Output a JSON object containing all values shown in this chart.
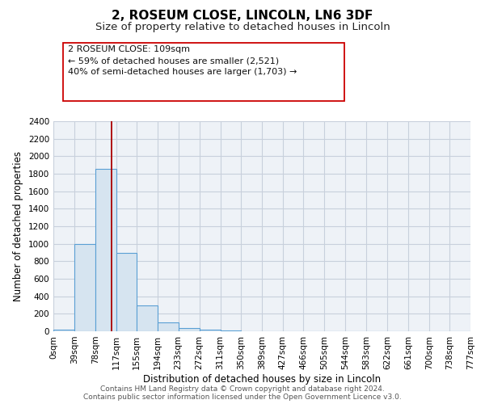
{
  "title": "2, ROSEUM CLOSE, LINCOLN, LN6 3DF",
  "subtitle": "Size of property relative to detached houses in Lincoln",
  "xlabel": "Distribution of detached houses by size in Lincoln",
  "ylabel": "Number of detached properties",
  "bin_edges": [
    0,
    39,
    78,
    117,
    155,
    194,
    233,
    272,
    311,
    350,
    389,
    427,
    466,
    505,
    544,
    583,
    622,
    661,
    700,
    738,
    777
  ],
  "bin_labels": [
    "0sqm",
    "39sqm",
    "78sqm",
    "117sqm",
    "155sqm",
    "194sqm",
    "233sqm",
    "272sqm",
    "311sqm",
    "350sqm",
    "389sqm",
    "427sqm",
    "466sqm",
    "505sqm",
    "544sqm",
    "583sqm",
    "622sqm",
    "661sqm",
    "700sqm",
    "738sqm",
    "777sqm"
  ],
  "bar_heights": [
    20,
    1000,
    1860,
    900,
    300,
    100,
    40,
    20,
    10,
    0,
    0,
    0,
    0,
    0,
    0,
    0,
    0,
    0,
    0,
    0
  ],
  "bar_color": "#d6e4f0",
  "bar_edge_color": "#5a9fd4",
  "property_value": 109,
  "vline_color": "#aa0000",
  "annotation_text": "2 ROSEUM CLOSE: 109sqm\n← 59% of detached houses are smaller (2,521)\n40% of semi-detached houses are larger (1,703) →",
  "annotation_box_facecolor": "#ffffff",
  "annotation_box_edgecolor": "#cc0000",
  "ylim": [
    0,
    2400
  ],
  "yticks": [
    0,
    200,
    400,
    600,
    800,
    1000,
    1200,
    1400,
    1600,
    1800,
    2000,
    2200,
    2400
  ],
  "footer_line1": "Contains HM Land Registry data © Crown copyright and database right 2024.",
  "footer_line2": "Contains public sector information licensed under the Open Government Licence v3.0.",
  "fig_facecolor": "#ffffff",
  "plot_facecolor": "#eef2f7",
  "grid_color": "#c8d0dc",
  "title_fontsize": 11,
  "subtitle_fontsize": 9.5,
  "axis_label_fontsize": 8.5,
  "tick_fontsize": 7.5,
  "annotation_fontsize": 8,
  "footer_fontsize": 6.5
}
